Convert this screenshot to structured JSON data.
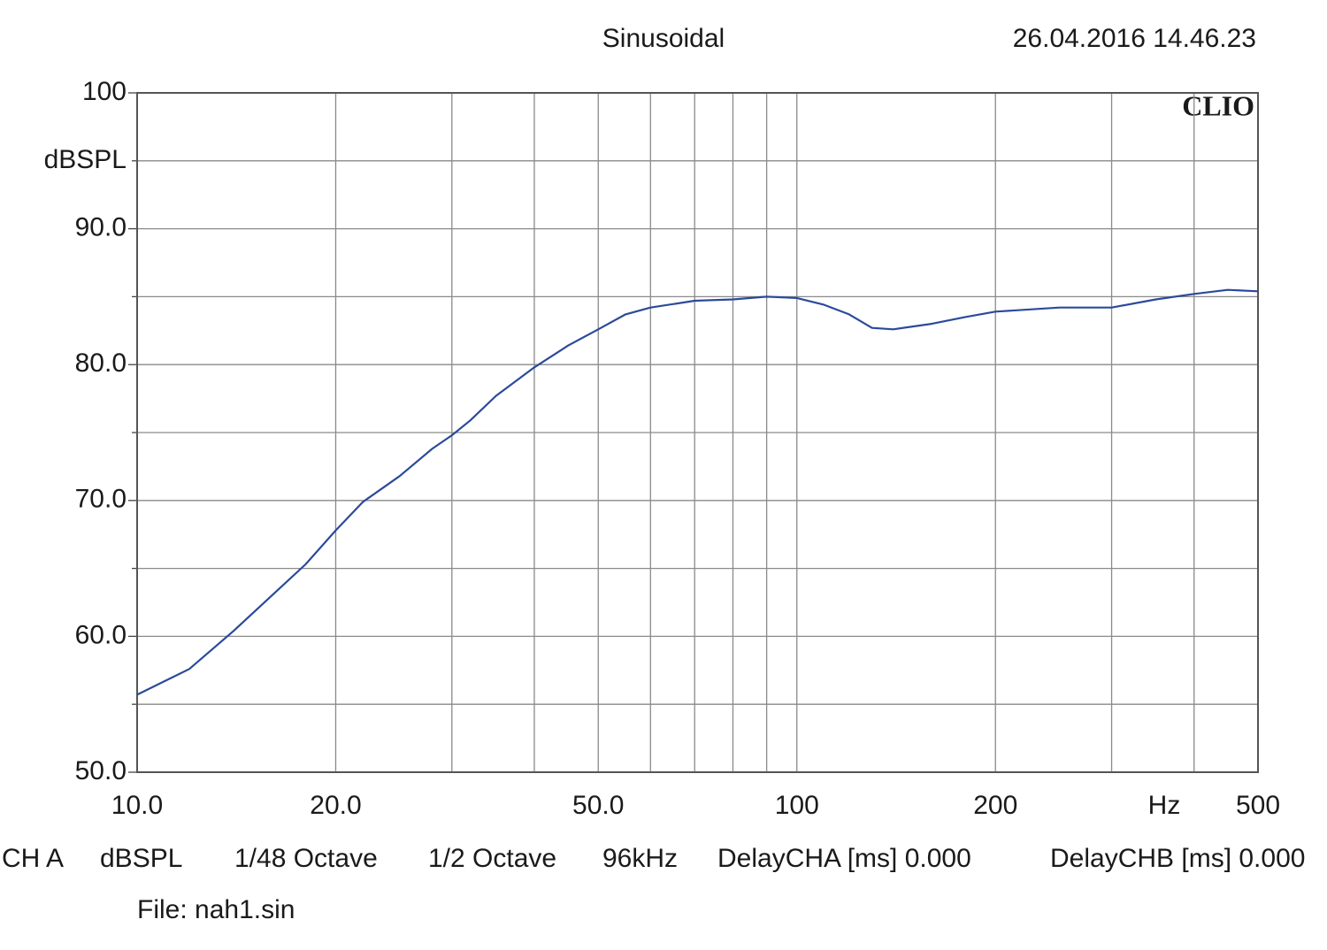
{
  "chart_data": {
    "type": "line",
    "title": "Sinusoidal",
    "timestamp": "26.04.2016 14.46.23",
    "watermark": "CLIO",
    "y_label": "dBSPL",
    "x_label": "Hz",
    "x_scale": "log",
    "grid": true,
    "xlim": [
      10,
      500
    ],
    "ylim": [
      50,
      100
    ],
    "xticks": [
      {
        "value": 10,
        "label": "10.0"
      },
      {
        "value": 20,
        "label": "20.0"
      },
      {
        "value": 50,
        "label": "50.0"
      },
      100,
      200,
      500
    ],
    "xgrid": [
      30,
      40,
      60,
      70,
      80,
      90,
      300,
      400
    ],
    "yticks": [
      {
        "value": 50,
        "label": "50.0"
      },
      {
        "value": 60,
        "label": "60.0"
      },
      {
        "value": 70,
        "label": "70.0"
      },
      {
        "value": 80,
        "label": "80.0"
      },
      {
        "value": 90,
        "label": "90.0"
      },
      100
    ],
    "ygrid": [
      55,
      65,
      75,
      85,
      95
    ],
    "x": [
      10,
      12,
      14,
      16,
      18,
      20,
      22,
      25,
      28,
      30,
      32,
      35,
      40,
      45,
      50,
      55,
      60,
      70,
      80,
      90,
      100,
      110,
      120,
      130,
      140,
      160,
      180,
      200,
      250,
      300,
      350,
      400,
      450,
      500
    ],
    "series": [
      {
        "name": "CH A",
        "color": "#2b4a9a",
        "values": [
          55.7,
          57.6,
          60.4,
          63.0,
          65.3,
          67.8,
          69.9,
          71.8,
          73.8,
          74.8,
          75.9,
          77.7,
          79.8,
          81.4,
          82.6,
          83.7,
          84.2,
          84.7,
          84.8,
          85.0,
          84.9,
          84.4,
          83.7,
          82.7,
          82.6,
          83.0,
          83.5,
          83.9,
          84.2,
          84.2,
          84.8,
          85.2,
          85.5,
          85.4
        ]
      }
    ],
    "footer": [
      "CH A",
      "dBSPL",
      "1/48 Octave",
      "1/2 Octave",
      "96kHz",
      "DelayCHA [ms] 0.000",
      "DelayCHB [ms] 0.000"
    ],
    "file": "File: nah1.sin"
  }
}
